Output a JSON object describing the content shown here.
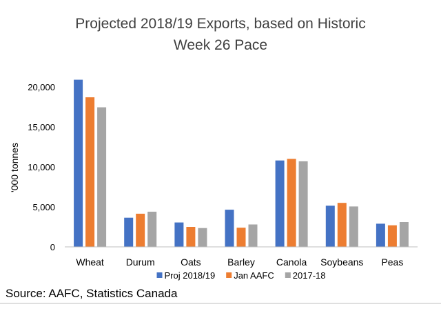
{
  "chart_data": {
    "type": "bar",
    "title_lines": [
      "Projected 2018/19 Exports, based on Historic",
      "Week 26 Pace"
    ],
    "ylabel": "'000 tonnes",
    "xlabel": "",
    "categories": [
      "Wheat",
      "Durum",
      "Oats",
      "Barley",
      "Canola",
      "Soybeans",
      "Peas"
    ],
    "series": [
      {
        "name": "Proj 2018/19",
        "color": "#4472C4",
        "values": [
          20900,
          3650,
          3050,
          4650,
          10800,
          5150,
          2900
        ]
      },
      {
        "name": "Jan AAFC",
        "color": "#ED7D31",
        "values": [
          18700,
          4150,
          2500,
          2400,
          11000,
          5500,
          2700
        ]
      },
      {
        "name": "2017-18",
        "color": "#A5A5A5",
        "values": [
          17450,
          4400,
          2350,
          2800,
          10700,
          5050,
          3100
        ]
      }
    ],
    "ylim": [
      0,
      20000
    ],
    "yticks": [
      0,
      5000,
      10000,
      15000,
      20000
    ],
    "ytick_labels": [
      "0",
      "5,000",
      "10,000",
      "15,000",
      "20,000"
    ],
    "grid": false,
    "legend_position": "bottom"
  },
  "source_text": "Source: AAFC, Statistics Canada"
}
